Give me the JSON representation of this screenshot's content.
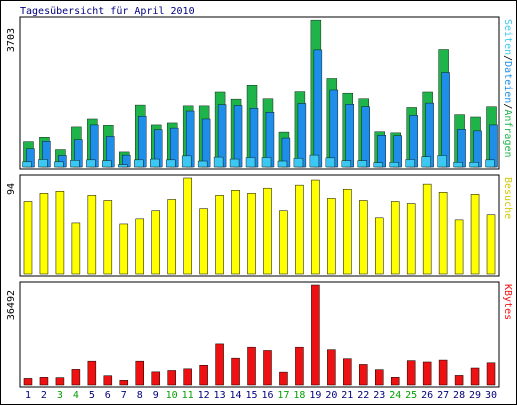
{
  "chart_data": {
    "type": "bar",
    "title": "Tagesübersicht für April 2010",
    "days": [
      "1",
      "2",
      "3",
      "4",
      "5",
      "6",
      "7",
      "8",
      "9",
      "10",
      "11",
      "12",
      "13",
      "14",
      "15",
      "16",
      "17",
      "18",
      "19",
      "20",
      "21",
      "22",
      "23",
      "24",
      "25",
      "26",
      "27",
      "28",
      "29",
      "30"
    ],
    "weekend_days": [
      "3",
      "4",
      "10",
      "11",
      "17",
      "18",
      "24",
      "25"
    ],
    "colors": {
      "anfragen": "#1fb44a",
      "dateien": "#1e8ee8",
      "seiten": "#3cc8f0",
      "besuche": "#ffff00",
      "kbytes": "#ee1111",
      "weekday_label": "#000080",
      "weekend_label": "#00a000",
      "frame": "#000000"
    },
    "panels": [
      {
        "key": "top",
        "max_label": "3703",
        "ymax": 3703,
        "side_label_parts": [
          {
            "text": "Seiten",
            "color": "#3cc8f0"
          },
          {
            "text": "/",
            "color": "#000000"
          },
          {
            "text": "Dateien",
            "color": "#1e8ee8"
          },
          {
            "text": "/",
            "color": "#000000"
          },
          {
            "text": "Anfragen",
            "color": "#1fb44a"
          }
        ],
        "series": [
          {
            "name": "Anfragen",
            "color": "#1fb44a",
            "values": [
              640,
              750,
              440,
              1010,
              1210,
              1050,
              380,
              1560,
              1060,
              1110,
              1540,
              1540,
              1890,
              1710,
              2060,
              1720,
              880,
              1900,
              3700,
              2230,
              1860,
              1720,
              890,
              860,
              1500,
              1890,
              2960,
              1320,
              1260,
              1520
            ]
          },
          {
            "name": "Dateien",
            "color": "#1e8ee8",
            "values": [
              460,
              650,
              290,
              690,
              1060,
              770,
              300,
              1280,
              940,
              980,
              1410,
              1210,
              1570,
              1550,
              1480,
              1380,
              730,
              1600,
              2950,
              1940,
              1580,
              1520,
              800,
              790,
              1300,
              1610,
              2380,
              950,
              910,
              1060
            ]
          },
          {
            "name": "Seiten",
            "color": "#3cc8f0",
            "values": [
              130,
              190,
              130,
              170,
              180,
              160,
              60,
              180,
              200,
              180,
              280,
              150,
              250,
              200,
              240,
              240,
              150,
              220,
              300,
              230,
              160,
              160,
              110,
              120,
              190,
              260,
              290,
              120,
              120,
              180
            ]
          }
        ]
      },
      {
        "key": "mid",
        "max_label": "94",
        "ymax": 94,
        "side_label_parts": [
          {
            "text": "Besuche",
            "color": "#d0c800"
          }
        ],
        "series": [
          {
            "name": "Besuche",
            "color": "#ffff00",
            "values": [
              71,
              79,
              81,
              50,
              77,
              72,
              49,
              54,
              62,
              73,
              94,
              64,
              77,
              82,
              79,
              84,
              62,
              87,
              92,
              74,
              83,
              72,
              55,
              71,
              69,
              88,
              80,
              53,
              78,
              58
            ]
          }
        ]
      },
      {
        "key": "bot",
        "max_label": "36492",
        "ymax": 36492,
        "side_label_parts": [
          {
            "text": "KBytes",
            "color": "#ee1111"
          }
        ],
        "series": [
          {
            "name": "KBytes",
            "color": "#ee1111",
            "values": [
              2400,
              2800,
              2700,
              5700,
              8700,
              3400,
              1700,
              8700,
              4800,
              5300,
              5900,
              7200,
              15000,
              9800,
              13800,
              12600,
              4700,
              13800,
              36492,
              12900,
              9600,
              7500,
              5600,
              2800,
              8900,
              8400,
              9100,
              3500,
              6200,
              8100
            ]
          }
        ]
      }
    ]
  }
}
